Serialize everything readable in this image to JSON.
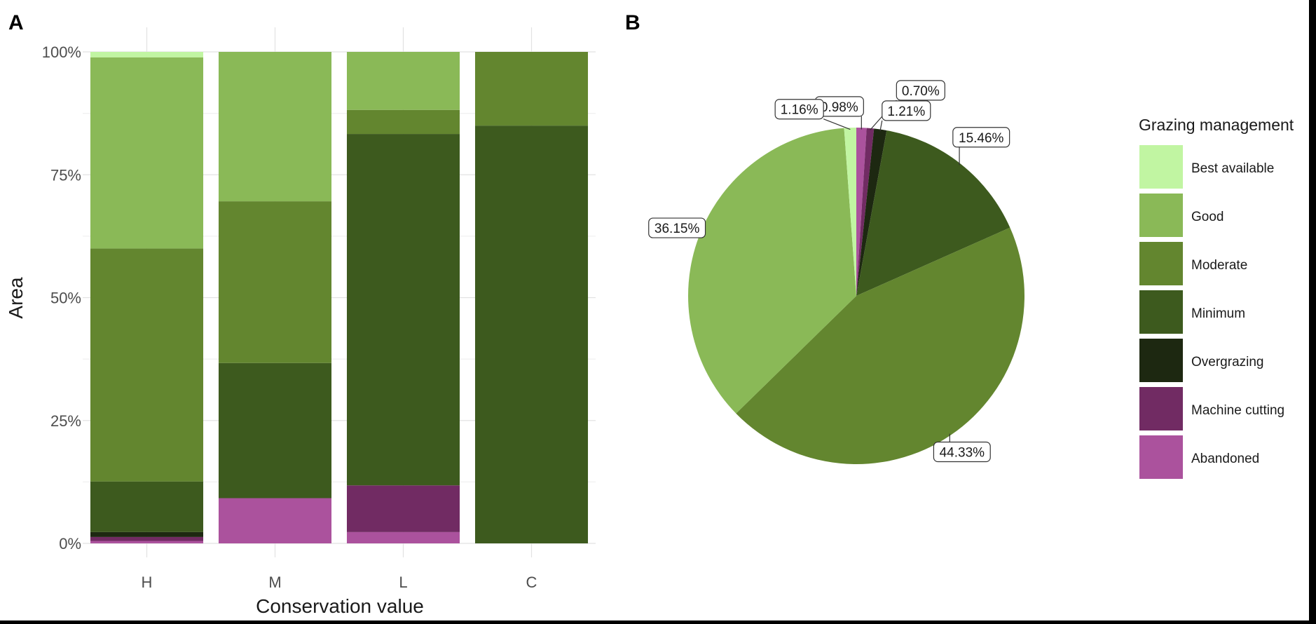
{
  "panels": {
    "a": "A",
    "b": "B"
  },
  "legend": {
    "title": "Grazing management",
    "items": [
      {
        "label": "Best available",
        "color": "#c1f5a2"
      },
      {
        "label": "Good",
        "color": "#8ab957"
      },
      {
        "label": "Moderate",
        "color": "#63862f"
      },
      {
        "label": "Minimum",
        "color": "#3d5a1e"
      },
      {
        "label": "Overgrazing",
        "color": "#1d2811"
      },
      {
        "label": "Machine cutting",
        "color": "#712b63"
      },
      {
        "label": "Abandoned",
        "color": "#ab529d"
      }
    ]
  },
  "chart_data": [
    {
      "type": "bar",
      "stacked": true,
      "xlabel": "Conservation value",
      "ylabel": "Area",
      "ylim": [
        0,
        100
      ],
      "yticks": [
        "0%",
        "25%",
        "50%",
        "75%",
        "100%"
      ],
      "yunit": "%",
      "categories": [
        "H",
        "M",
        "L",
        "C"
      ],
      "grid": true,
      "series": [
        {
          "name": "Abandoned",
          "values": [
            0.5,
            9.2,
            2.3,
            0
          ]
        },
        {
          "name": "Machine cutting",
          "values": [
            0.8,
            0,
            9.5,
            0
          ]
        },
        {
          "name": "Overgrazing",
          "values": [
            1.0,
            0,
            0,
            0
          ]
        },
        {
          "name": "Minimum",
          "values": [
            10.3,
            27.5,
            71.5,
            85
          ]
        },
        {
          "name": "Moderate",
          "values": [
            47.4,
            32.9,
            4.9,
            15
          ]
        },
        {
          "name": "Good",
          "values": [
            38.9,
            30.4,
            11.8,
            0
          ]
        },
        {
          "name": "Best available",
          "values": [
            1.1,
            0,
            0,
            0
          ]
        }
      ]
    },
    {
      "type": "pie",
      "start": "top",
      "direction": "clockwise",
      "slices": [
        {
          "name": "Abandoned",
          "value": 0.98,
          "label": "0.98%"
        },
        {
          "name": "Machine cutting",
          "value": 0.7,
          "label": "0.70%"
        },
        {
          "name": "Overgrazing",
          "value": 1.21,
          "label": "1.21%"
        },
        {
          "name": "Minimum",
          "value": 15.46,
          "label": "15.46%"
        },
        {
          "name": "Moderate",
          "value": 44.33,
          "label": "44.33%"
        },
        {
          "name": "Good",
          "value": 36.15,
          "label": "36.15%"
        },
        {
          "name": "Best available",
          "value": 1.16,
          "label": "1.16%"
        }
      ]
    }
  ]
}
